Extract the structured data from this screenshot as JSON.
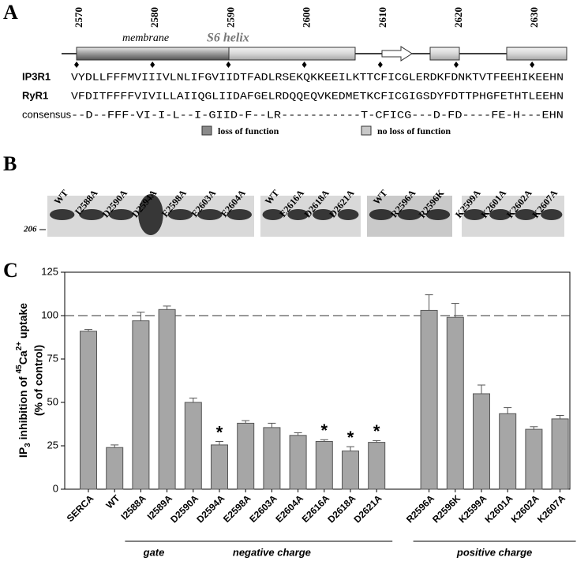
{
  "panel_a": {
    "label": "A",
    "ruler": [
      2570,
      2580,
      2590,
      2600,
      2610,
      2620,
      2630
    ],
    "membrane": "membrane",
    "helix": "S6 helix",
    "sequences": [
      {
        "name": "IP3R1",
        "seq": "VYDLLFFFMVIIIVLNLIFGVIIDTFADLRSEKQKKEEILKTTCFICGLERDKFDNKTVTFEEHIKEEHN"
      },
      {
        "name": "RyR1",
        "seq": "VFDITFFFFVIVILLAIIQGLIIDAFGELRDQQEQVKEDMETKCFICGIGSDYFDTTPHGFETHTLEEHN"
      },
      {
        "name": "consensus",
        "seq": "--D--FFF-VI-I-L--I-GIID-F--LR-----------T-CFICG---D-FD----FE-H---EHN"
      }
    ],
    "legend": [
      {
        "label": "loss of function",
        "color": "#8a8a8a"
      },
      {
        "label": "no loss of function",
        "color": "#c8c8c8"
      }
    ]
  },
  "panel_b": {
    "label": "B",
    "marker": "206",
    "lanes": [
      [
        "WT",
        "I2588A",
        "D2590A",
        "D2594A",
        "E2598A",
        "E2603A",
        "E2604A"
      ],
      [
        "WT",
        "E2616A",
        "D2618A",
        "D2621A"
      ],
      [
        "WT",
        "R2596A",
        "R2596K"
      ],
      [
        "K2599A",
        "K2601A",
        "K2602A",
        "K2607A"
      ]
    ]
  },
  "chart_data": {
    "type": "bar",
    "panel_label": "C",
    "categories": [
      "SERCA",
      "WT",
      "I2588A",
      "I2589A",
      "D2590A",
      "D2594A",
      "E2598A",
      "E2603A",
      "E2604A",
      "E2616A",
      "D2618A",
      "D2621A",
      null,
      "R2596A",
      "R2596K",
      "K2599A",
      "K2601A",
      "K2602A",
      "K2607A"
    ],
    "values": [
      91,
      24,
      97,
      103.5,
      50,
      25.5,
      38,
      35.5,
      31,
      27.5,
      22,
      27,
      null,
      103,
      99,
      55,
      43.5,
      34.5,
      40.5
    ],
    "errors": [
      1,
      1.5,
      5,
      2,
      2.5,
      2,
      1.5,
      2.5,
      1.5,
      1,
      2.5,
      1,
      null,
      9,
      8,
      5,
      3.5,
      1.5,
      2
    ],
    "color": "#a6a6a6",
    "ylim": [
      0,
      125
    ],
    "yticks": [
      0,
      25,
      50,
      75,
      100,
      125
    ],
    "reference_line": 100,
    "ylabel_parts": [
      {
        "text": "IP",
        "style": "normal"
      },
      {
        "text": "3",
        "style": "sub"
      },
      {
        "text": " inhibition of  ",
        "style": "normal"
      },
      {
        "text": "45",
        "style": "sup"
      },
      {
        "text": "Ca",
        "style": "normal"
      },
      {
        "text": "2+",
        "style": "sup"
      },
      {
        "text": " uptake",
        "style": "normal"
      }
    ],
    "ylabel2": "(% of control)",
    "annotations": [
      {
        "text": "*",
        "category": "D2594A"
      },
      {
        "text": "*",
        "category": "E2616A"
      },
      {
        "text": "*",
        "category": "D2618A"
      },
      {
        "text": "*",
        "category": "D2621A"
      }
    ],
    "groups": [
      {
        "label": "gate",
        "from": "I2588A",
        "to": "I2589A"
      },
      {
        "label": "negative charge",
        "from": "I2589A",
        "to": "D2621A"
      },
      {
        "label": "positive charge",
        "from": "R2596A",
        "to": "K2607A"
      }
    ]
  }
}
